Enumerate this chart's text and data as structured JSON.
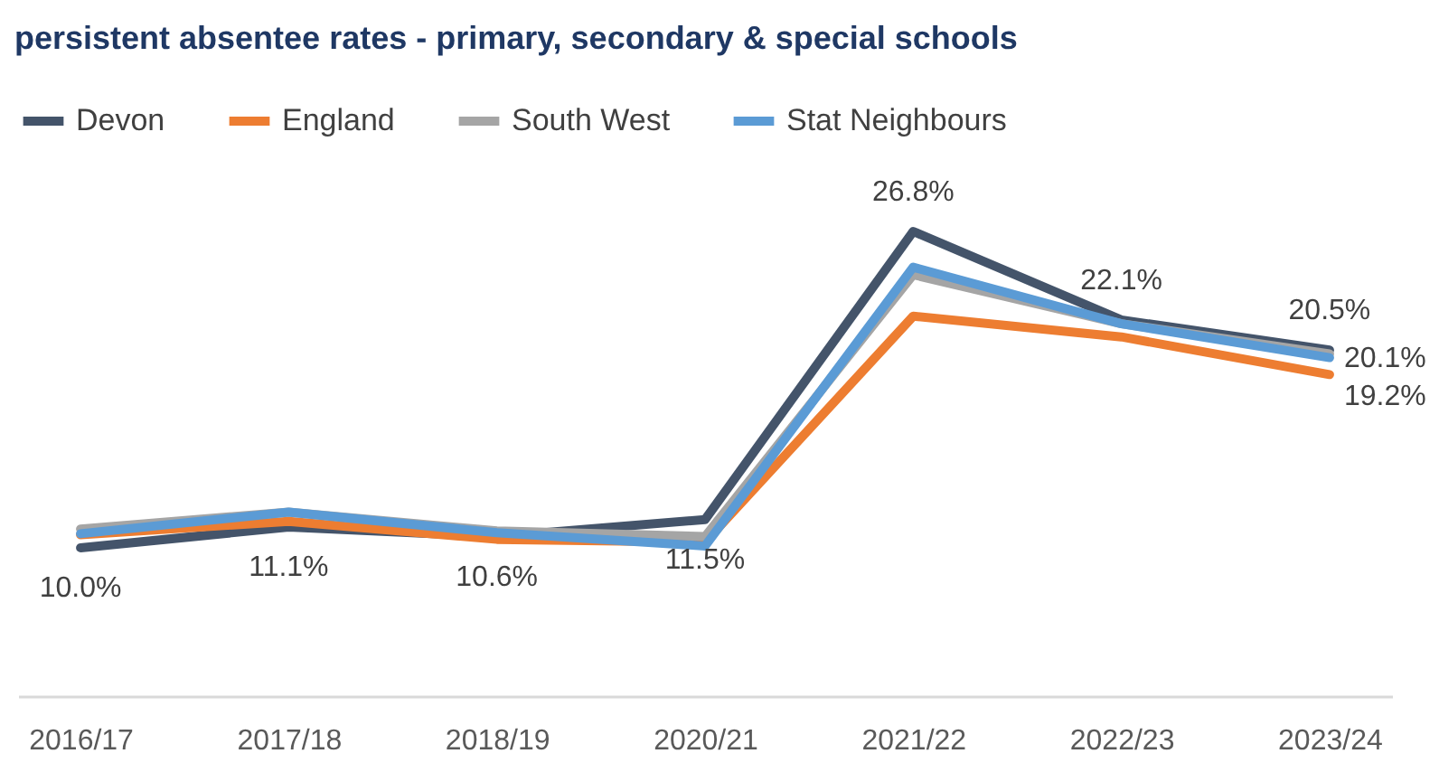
{
  "chart_data": {
    "type": "line",
    "title": "persistent absentee rates - primary, secondary & special schools",
    "categories": [
      "2016/17",
      "2017/18",
      "2018/19",
      "2020/21",
      "2021/22",
      "2022/23",
      "2023/24"
    ],
    "legend": "top left",
    "grid": false,
    "marker": "none",
    "line_style": "solid",
    "series": [
      {
        "name": "Devon",
        "color": "#44546a",
        "values": [
          10.0,
          11.1,
          10.6,
          11.5,
          26.8,
          22.1,
          20.5
        ],
        "value_labels": [
          "10.0%",
          "11.1%",
          "10.6%",
          "11.5%",
          "26.8%",
          "22.1%",
          "20.5%"
        ]
      },
      {
        "name": "England",
        "color": "#ed7d31",
        "values": [
          10.7,
          11.4,
          10.45,
          10.3,
          22.3,
          21.2,
          19.2
        ],
        "value_labels": [
          null,
          null,
          null,
          null,
          null,
          null,
          "19.2%"
        ]
      },
      {
        "name": "South West",
        "color": "#a5a5a5",
        "values": [
          11.0,
          11.9,
          10.9,
          10.6,
          24.5,
          21.9,
          20.3
        ]
      },
      {
        "name": "Stat Neighbours",
        "color": "#5b9bd5",
        "values": [
          10.75,
          11.9,
          10.8,
          10.1,
          24.9,
          21.9,
          20.1
        ],
        "value_labels": [
          null,
          null,
          null,
          null,
          null,
          null,
          "20.1%"
        ]
      }
    ]
  }
}
